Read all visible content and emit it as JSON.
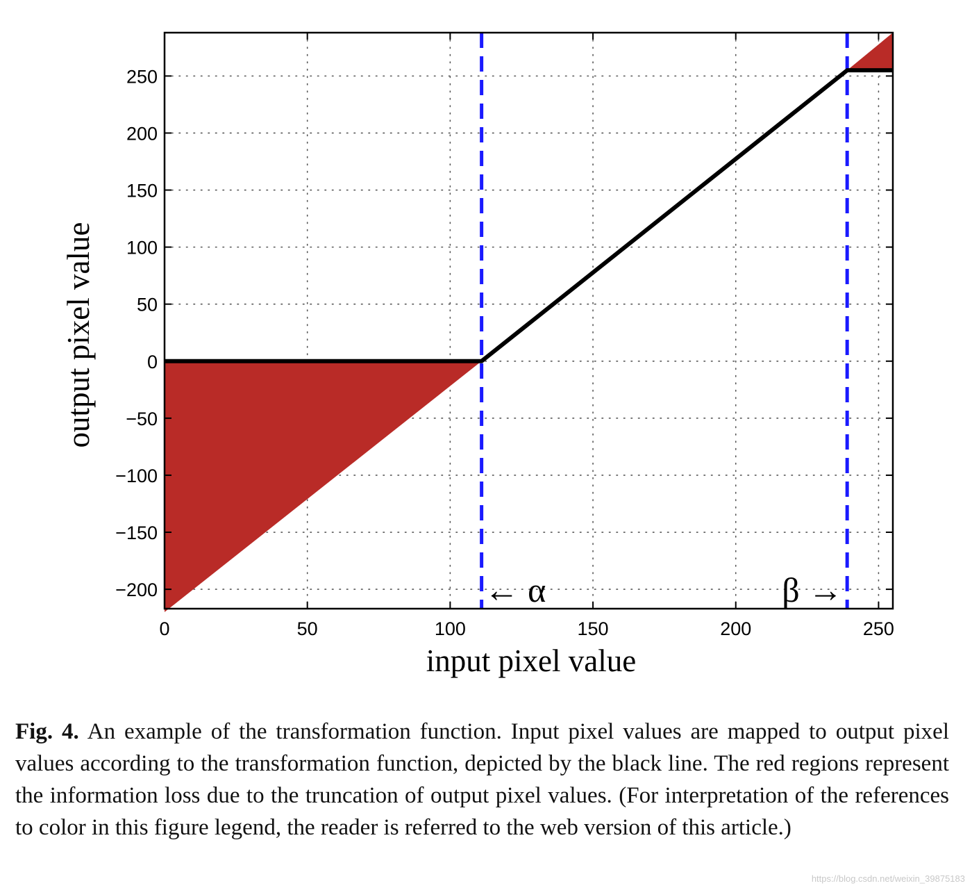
{
  "chart_data": {
    "type": "line",
    "title": "",
    "xlabel": "input pixel value",
    "ylabel": "output pixel value",
    "xlim": [
      0,
      255
    ],
    "ylim": [
      -217,
      288
    ],
    "xticks": [
      0,
      50,
      100,
      150,
      200,
      250
    ],
    "yticks": [
      -200,
      -150,
      -100,
      -50,
      0,
      50,
      100,
      150,
      200,
      250
    ],
    "xtick_labels": [
      "0",
      "50",
      "100",
      "150",
      "200",
      "250"
    ],
    "ytick_labels": [
      "−200",
      "−150",
      "−100",
      "−50",
      "0",
      "50",
      "100",
      "150",
      "200",
      "250"
    ],
    "grid": true,
    "series": [
      {
        "role": "transformation-function",
        "color": "#000000",
        "x": [
          0,
          111,
          239,
          255
        ],
        "y": [
          0,
          0,
          255,
          255
        ]
      }
    ],
    "reference_lines": [
      {
        "x": 111,
        "label": "← α",
        "color": "#1a1aff"
      },
      {
        "x": 239,
        "label": "β →",
        "color": "#1a1aff"
      }
    ],
    "regions": [
      {
        "role": "information-loss",
        "color": "#b92b27",
        "polygon": [
          [
            0,
            0
          ],
          [
            111,
            0
          ],
          [
            0,
            -220
          ]
        ]
      },
      {
        "role": "information-loss",
        "color": "#b92b27",
        "polygon": [
          [
            239,
            255
          ],
          [
            255,
            255
          ],
          [
            255,
            288
          ]
        ]
      }
    ]
  },
  "caption": {
    "label": "Fig. 4.",
    "text": "An example of the transformation function. Input pixel values are mapped to output pixel values according to the transformation function, depicted by the black line. The red regions represent the information loss due to the truncation of output pixel values. (For interpretation of the references to color in this figure legend, the reader is referred to the web version of this article.)"
  },
  "watermark": "https://blog.csdn.net/weixin_39875183"
}
